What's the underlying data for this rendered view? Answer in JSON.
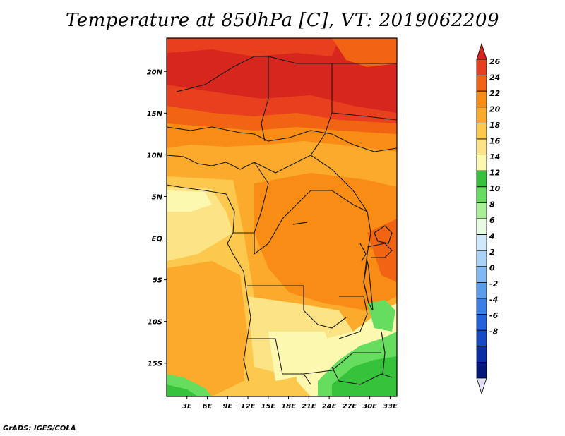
{
  "title": "Temperature at 850hPa [C], VT: 2019062209",
  "credit": "GrADS: IGES/COLA",
  "map": {
    "lon_range": [
      0,
      34
    ],
    "lat_range": [
      -19,
      24
    ],
    "lat_labels": [
      "20N",
      "15N",
      "10N",
      "5N",
      "EQ",
      "5S",
      "10S",
      "15S"
    ],
    "lat_values": [
      20,
      15,
      10,
      5,
      0,
      -5,
      -10,
      -15
    ],
    "lon_labels": [
      "3E",
      "6E",
      "9E",
      "12E",
      "15E",
      "18E",
      "21E",
      "24E",
      "27E",
      "30E",
      "33E"
    ],
    "lon_values": [
      3,
      6,
      9,
      12,
      15,
      18,
      21,
      24,
      27,
      30,
      33
    ]
  },
  "colorbar": {
    "labels": [
      "26",
      "24",
      "22",
      "20",
      "18",
      "16",
      "14",
      "12",
      "10",
      "8",
      "6",
      "4",
      "2",
      "0",
      "-2",
      "-4",
      "-6",
      "-8"
    ],
    "colors": [
      "#d7261e",
      "#e8401e",
      "#f06414",
      "#f88c14",
      "#fbaa2c",
      "#fcc84e",
      "#fce386",
      "#fdf8b0",
      "#36c23a",
      "#66dd5e",
      "#a8ef98",
      "#e8fbe2",
      "#cfe8fb",
      "#a8d3f7",
      "#80b9f2",
      "#5a9ded",
      "#3a7fe5",
      "#2262da",
      "#1649c6",
      "#0a2da8",
      "#04177a",
      "#e0e0f5"
    ]
  }
}
